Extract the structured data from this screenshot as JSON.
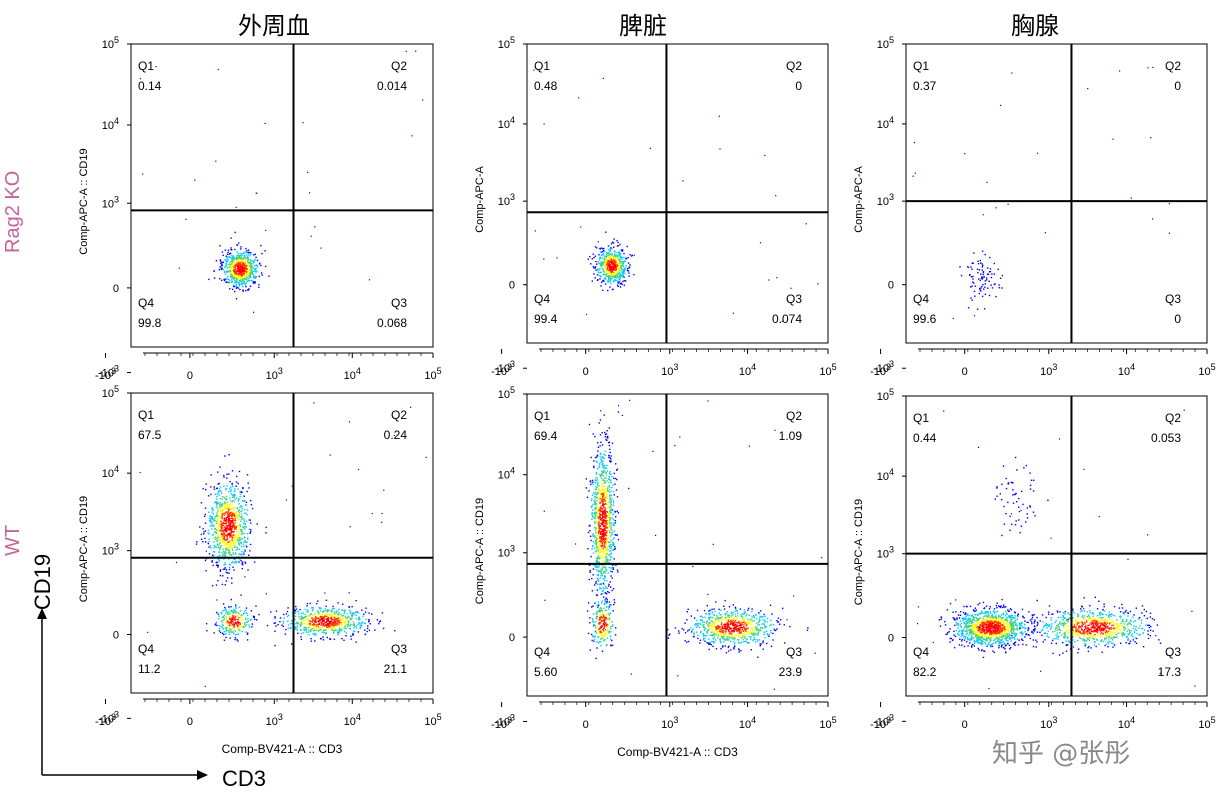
{
  "columns": [
    "外周血",
    "脾脏",
    "胸腺"
  ],
  "rows": [
    "Rag2 KO",
    "WT"
  ],
  "axis_legend": {
    "y": "CD19",
    "x": "CD3"
  },
  "watermark": "知乎 @张彤",
  "colors": {
    "row_label": "#c8629a",
    "gate": "#000000",
    "density": [
      "#0000ff",
      "#00c8ff",
      "#3cd28c",
      "#ffff00",
      "#ff3c00",
      "#ff0000"
    ]
  },
  "chart_data": [
    {
      "type": "scatter",
      "panel": "外周血 / Rag2 KO",
      "ylabel": "Comp-APC-A :: CD19",
      "xlabel": "",
      "quadrants": {
        "Q1": "0.14",
        "Q2": "0.014",
        "Q3": "0.068",
        "Q4": "99.8"
      },
      "x_ticks": [
        "-10^3",
        "0",
        "10^3",
        "10^4",
        "10^5"
      ],
      "y_ticks": [
        "-10^3",
        "0",
        "10^3",
        "10^4",
        "10^5"
      ],
      "gate": {
        "x": 1800,
        "y": 800
      }
    },
    {
      "type": "scatter",
      "panel": "脾脏 / Rag2 KO",
      "ylabel": "Comp-APC-A",
      "xlabel": "",
      "quadrants": {
        "Q1": "0.48",
        "Q2": "0",
        "Q3": "0.074",
        "Q4": "99.4"
      },
      "x_ticks": [
        "-10^3",
        "0",
        "10^3",
        "10^4",
        "10^5"
      ],
      "y_ticks": [
        "-10^3",
        "0",
        "10^3",
        "10^4",
        "10^5"
      ],
      "gate": {
        "x": 900,
        "y": 700
      }
    },
    {
      "type": "scatter",
      "panel": "胸腺 / Rag2 KO",
      "ylabel": "Comp-APC-A",
      "xlabel": "",
      "quadrants": {
        "Q1": "0.37",
        "Q2": "0",
        "Q3": "0",
        "Q4": "99.6"
      },
      "x_ticks": [
        "-10^3",
        "0",
        "10^3",
        "10^4",
        "10^5"
      ],
      "y_ticks": [
        "-10^3",
        "0",
        "10^3",
        "10^4",
        "10^5"
      ],
      "gate": {
        "x": 2000,
        "y": 1000
      }
    },
    {
      "type": "scatter",
      "panel": "外周血 / WT",
      "ylabel": "Comp-APC-A :: CD19",
      "xlabel": "Comp-BV421-A :: CD3",
      "quadrants": {
        "Q1": "67.5",
        "Q2": "0.24",
        "Q3": "21.1",
        "Q4": "11.2"
      },
      "x_ticks": [
        "-10^3",
        "0",
        "10^3",
        "10^4",
        "10^5"
      ],
      "y_ticks": [
        "-10^3",
        "0",
        "10^3",
        "10^4",
        "10^5"
      ],
      "gate": {
        "x": 1800,
        "y": 800
      }
    },
    {
      "type": "scatter",
      "panel": "脾脏 / WT",
      "ylabel": "Comp-APC-A :: CD19",
      "xlabel": "Comp-BV421-A :: CD3",
      "quadrants": {
        "Q1": "69.4",
        "Q2": "1.09",
        "Q3": "23.9",
        "Q4": "5.60"
      },
      "x_ticks": [
        "-10^3",
        "0",
        "10^3",
        "10^4",
        "10^5"
      ],
      "y_ticks": [
        "-10^3",
        "0",
        "10^3",
        "10^4",
        "10^5"
      ],
      "gate": {
        "x": 900,
        "y": 700
      }
    },
    {
      "type": "scatter",
      "panel": "胸腺 / WT",
      "ylabel": "Comp-APC-A :: CD19",
      "xlabel": "",
      "quadrants": {
        "Q1": "0.44",
        "Q2": "0.053",
        "Q3": "17.3",
        "Q4": "82.2"
      },
      "x_ticks": [
        "-10^3",
        "0",
        "10^3",
        "10^4",
        "10^5"
      ],
      "y_ticks": [
        "-10^3",
        "0",
        "10^3",
        "10^4",
        "10^5"
      ],
      "gate": {
        "x": 2000,
        "y": 1000
      }
    }
  ]
}
